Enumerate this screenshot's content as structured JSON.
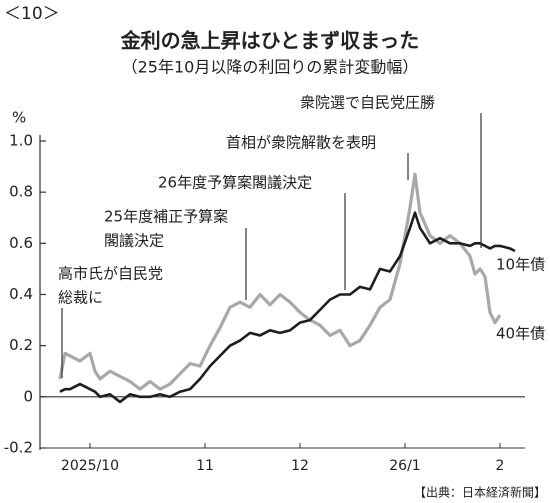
{
  "chart_data": {
    "type": "line",
    "label": "＜10＞",
    "title": "金利の急上昇はひとまず収まった",
    "subtitle": "（25年10月以降の利回りの累計変動幅）",
    "y_unit": "%",
    "source": "【出典：日本経済新聞】",
    "x": [
      1,
      2,
      3,
      5,
      7,
      8,
      9,
      11,
      13,
      15,
      17,
      19,
      21,
      23,
      25,
      27,
      29,
      31,
      33,
      35,
      37,
      39,
      41,
      43,
      45,
      47,
      49,
      51,
      53,
      55,
      57,
      59,
      61,
      63,
      65,
      67,
      69,
      71,
      72,
      73,
      75,
      77,
      79,
      81,
      83,
      84,
      85,
      86,
      87,
      88,
      89,
      91,
      92
    ],
    "xlim": [
      -3,
      94
    ],
    "xticks": [
      {
        "value": 7,
        "label": "2025/10"
      },
      {
        "value": 30,
        "label": "11"
      },
      {
        "value": 49,
        "label": "12"
      },
      {
        "value": 70,
        "label": "26/1"
      },
      {
        "value": 89,
        "label": "2"
      }
    ],
    "ylim": [
      -0.2,
      1.0
    ],
    "yticks": [
      {
        "value": 1,
        "label": "1.0"
      },
      0.8,
      0.6,
      0.4,
      0.2,
      0,
      -0.2
    ],
    "series": [
      {
        "name": "40年債",
        "color": "#a8a8a8",
        "values": [
          0.07,
          0.17,
          0.16,
          0.14,
          0.17,
          0.1,
          0.07,
          0.1,
          0.08,
          0.06,
          0.03,
          0.06,
          0.03,
          0.05,
          0.09,
          0.13,
          0.12,
          0.2,
          0.27,
          0.35,
          0.37,
          0.35,
          0.4,
          0.36,
          0.4,
          0.37,
          0.33,
          0.3,
          0.28,
          0.24,
          0.26,
          0.2,
          0.22,
          0.28,
          0.35,
          0.38,
          0.52,
          0.74,
          0.87,
          0.72,
          0.63,
          0.6,
          0.63,
          0.6,
          0.55,
          0.48,
          0.5,
          0.47,
          0.33,
          0.29,
          0.32,
          null,
          null
        ]
      },
      {
        "name": "10年債",
        "color": "#1e1e1e",
        "values": [
          0.02,
          0.03,
          0.03,
          0.05,
          0.03,
          0.02,
          0,
          0.01,
          -0.02,
          0.01,
          0,
          0,
          0.01,
          0,
          0.02,
          0.03,
          0.07,
          0.12,
          0.16,
          0.2,
          0.22,
          0.25,
          0.24,
          0.26,
          0.25,
          0.26,
          0.29,
          0.3,
          0.34,
          0.38,
          0.4,
          0.4,
          0.43,
          0.42,
          0.5,
          0.49,
          0.55,
          0.66,
          0.72,
          0.66,
          0.6,
          0.62,
          0.6,
          0.6,
          0.59,
          0.6,
          0.6,
          0.59,
          0.58,
          0.59,
          0.59,
          0.58,
          0.57
        ]
      }
    ],
    "annotations": [
      {
        "lines": [
          "高市氏が自民党",
          "総裁に"
        ]
      },
      {
        "lines": [
          "25年度補正予算案",
          "閣議決定"
        ]
      },
      {
        "lines": [
          "26年度予算案閣議決定"
        ]
      },
      {
        "lines": [
          "首相が衆院解散を表明"
        ]
      },
      {
        "lines": [
          "衆院選で自民党圧勝"
        ]
      }
    ]
  }
}
